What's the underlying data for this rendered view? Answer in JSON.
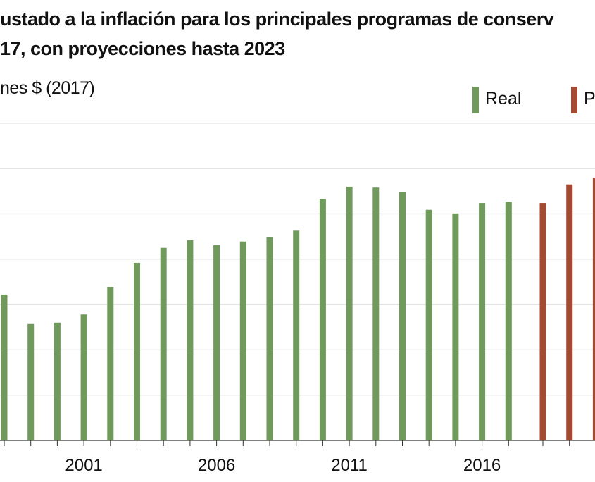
{
  "chart_data": {
    "type": "bar",
    "title": "ustado a la inflación para los principales programas de conserv",
    "subtitle": "17, con proyecciones hasta 2023",
    "ylabel": "nes $ (2017)",
    "xlabel": "",
    "categories": [
      1998,
      1999,
      2000,
      2001,
      2002,
      2003,
      2004,
      2005,
      2006,
      2007,
      2008,
      2009,
      2010,
      2011,
      2012,
      2013,
      2014,
      2015,
      2016,
      2017,
      2018,
      2019,
      2020
    ],
    "tick_labels": [
      "2001",
      "2006",
      "2011",
      "2016"
    ],
    "series": [
      {
        "name": "Real",
        "color": "#6f9a5b",
        "values": [
          3.22,
          2.57,
          2.6,
          2.78,
          3.39,
          3.92,
          4.25,
          4.42,
          4.31,
          4.39,
          4.49,
          4.63,
          5.33,
          5.6,
          5.58,
          5.49,
          5.09,
          5.01,
          5.24,
          5.27,
          null,
          null,
          null
        ]
      },
      {
        "name": "P",
        "color": "#a54a32",
        "values": [
          null,
          null,
          null,
          null,
          null,
          null,
          null,
          null,
          null,
          null,
          null,
          null,
          null,
          null,
          null,
          null,
          null,
          null,
          null,
          null,
          5.24,
          5.65,
          5.8
        ]
      }
    ],
    "ylim": [
      0,
      7
    ],
    "grid": true,
    "legend_placement": "top-right"
  }
}
